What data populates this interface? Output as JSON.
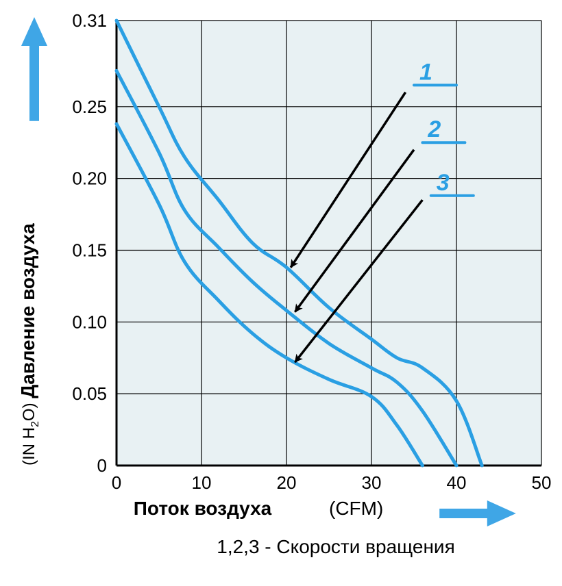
{
  "chart": {
    "type": "line",
    "background_color": "#ffffff",
    "plot_background_color": "#e8f1f3",
    "grid_color": "#000000",
    "grid_linewidth": 1.2,
    "axis_linewidth": 3,
    "xlim": [
      0,
      50
    ],
    "ylim": [
      0,
      0.31
    ],
    "xticks": [
      0,
      10,
      20,
      30,
      40,
      50
    ],
    "yticks": [
      0,
      0.05,
      0.1,
      0.15,
      0.2,
      0.25,
      0.31
    ],
    "xtick_labels": [
      "0",
      "10",
      "20",
      "30",
      "40",
      "50"
    ],
    "ytick_labels": [
      "0",
      "0.05",
      "0.10",
      "0.15",
      "0.20",
      "0.25",
      "0.31"
    ],
    "tick_fontsize": 26,
    "x_axis": {
      "label": "Поток воздуха",
      "unit": "(CFM)",
      "arrow_color": "#3fa6e6",
      "label_fontsize": 28
    },
    "y_axis": {
      "label": "Давление воздуха",
      "unit_prefix": "(IN",
      "unit_h": "H",
      "unit_sub": "2",
      "unit_o": "O)",
      "arrow_color": "#3fa6e6",
      "label_fontsize": 28
    },
    "caption": "1,2,3 - Скорости вращения",
    "caption_fontsize": 28,
    "series_color": "#2a9fe3",
    "series_linewidth": 5,
    "series_marker_color": "#2a9fe3",
    "series_marker_linewidth": 4,
    "arrow_color_callout": "#000000",
    "series": [
      {
        "id": "1",
        "label": "1",
        "points": [
          [
            0,
            0.31
          ],
          [
            5,
            0.25
          ],
          [
            8,
            0.215
          ],
          [
            12,
            0.185
          ],
          [
            16,
            0.155
          ],
          [
            20,
            0.138
          ],
          [
            25,
            0.11
          ],
          [
            30,
            0.088
          ],
          [
            33,
            0.075
          ],
          [
            36,
            0.068
          ],
          [
            40,
            0.045
          ],
          [
            43,
            0.0
          ]
        ],
        "label_xy": [
          35,
          0.265
        ],
        "label_tick_to_x": 40,
        "arrow_tail": [
          34,
          0.26
        ],
        "arrow_head": [
          20.5,
          0.138
        ]
      },
      {
        "id": "2",
        "label": "2",
        "points": [
          [
            0,
            0.275
          ],
          [
            5,
            0.218
          ],
          [
            8,
            0.178
          ],
          [
            12,
            0.152
          ],
          [
            16,
            0.128
          ],
          [
            20,
            0.108
          ],
          [
            25,
            0.085
          ],
          [
            30,
            0.068
          ],
          [
            33,
            0.058
          ],
          [
            36,
            0.038
          ],
          [
            40,
            0.0
          ]
        ],
        "label_xy": [
          36,
          0.225
        ],
        "label_tick_to_x": 41,
        "arrow_tail": [
          35,
          0.22
        ],
        "arrow_head": [
          21,
          0.107
        ]
      },
      {
        "id": "3",
        "label": "3",
        "points": [
          [
            0,
            0.238
          ],
          [
            5,
            0.182
          ],
          [
            8,
            0.142
          ],
          [
            12,
            0.115
          ],
          [
            16,
            0.092
          ],
          [
            20,
            0.075
          ],
          [
            25,
            0.06
          ],
          [
            30,
            0.048
          ],
          [
            33,
            0.028
          ],
          [
            36,
            0.0
          ]
        ],
        "label_xy": [
          37,
          0.188
        ],
        "label_tick_to_x": 42,
        "arrow_tail": [
          36,
          0.185
        ],
        "arrow_head": [
          21,
          0.072
        ]
      }
    ]
  }
}
